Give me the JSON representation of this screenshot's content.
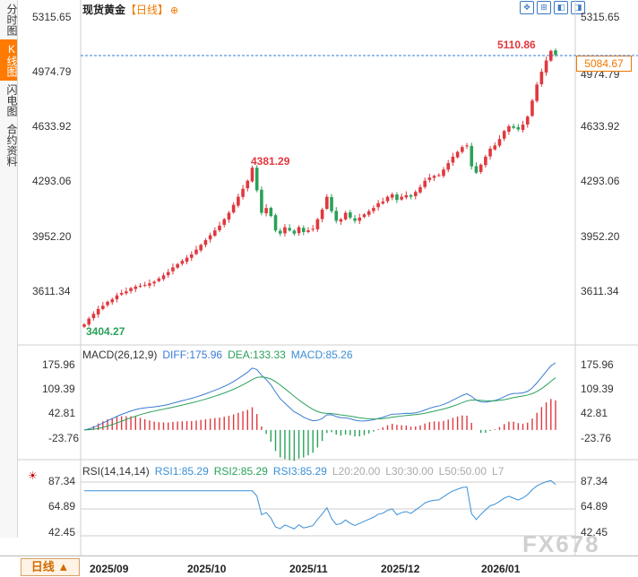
{
  "sidebar": {
    "tabs": [
      {
        "label": "分时图",
        "active": false
      },
      {
        "label": "K线图",
        "active": true
      },
      {
        "label": "闪电图",
        "active": false
      },
      {
        "label": "合约资料",
        "active": false
      }
    ]
  },
  "header": {
    "title": "现货黄金",
    "subtitle": "【日线】",
    "add_icon": "⊕"
  },
  "toolbar": {
    "icons": [
      "crosshair-icon",
      "zoom-in-icon",
      "move-left-icon",
      "move-right-icon"
    ]
  },
  "price_panel": {
    "y_ticks": [
      "5315.65",
      "4974.79",
      "4633.92",
      "4293.06",
      "3952.20",
      "3611.34"
    ],
    "high_label": "5110.86",
    "mid_high_label": "4381.29",
    "low_label": "3404.27",
    "current_price": "5084.67"
  },
  "macd_panel": {
    "title": "MACD(26,12,9)",
    "diff": "DIFF:175.96",
    "dea": "DEA:133.33",
    "macd": "MACD:85.26",
    "y_ticks": [
      "175.96",
      "109.39",
      "42.81",
      "-23.76"
    ]
  },
  "rsi_panel": {
    "title": "RSI(14,14,14)",
    "rsi1": "RSI1:85.29",
    "rsi2": "RSI2:85.29",
    "rsi3": "RSI3:85.29",
    "l20": "L20:20.00",
    "l30": "L30:30.00",
    "l50": "L50:50.00",
    "l7": "L7",
    "y_ticks": [
      "87.34",
      "64.89",
      "42.45"
    ]
  },
  "x_axis": {
    "labels": [
      "2025/09",
      "2025/10",
      "2025/11",
      "2025/12",
      "2026/01"
    ]
  },
  "bottom": {
    "range_label": "日线 ▲"
  },
  "watermark": "FX678",
  "chart_data": {
    "type": "candlestick",
    "colors": {
      "up": "#e0383e",
      "down": "#2aa15a",
      "diff": "#3a7bd5",
      "dea": "#2aa15a",
      "rsi": "#3a8fd5"
    },
    "y_range": [
      3404.27,
      5315.65
    ],
    "closes": [
      3404,
      3440,
      3470,
      3500,
      3520,
      3545,
      3560,
      3585,
      3600,
      3610,
      3630,
      3640,
      3645,
      3650,
      3660,
      3670,
      3690,
      3710,
      3730,
      3760,
      3780,
      3800,
      3820,
      3840,
      3870,
      3900,
      3930,
      3960,
      3990,
      4020,
      4060,
      4100,
      4150,
      4200,
      4250,
      4300,
      4381,
      4240,
      4100,
      4130,
      4080,
      3990,
      3970,
      4010,
      3990,
      3970,
      4010,
      3980,
      3990,
      4000,
      4060,
      4120,
      4200,
      4110,
      4050,
      4060,
      4100,
      4070,
      4050,
      4070,
      4090,
      4110,
      4130,
      4160,
      4170,
      4200,
      4215,
      4180,
      4200,
      4210,
      4200,
      4230,
      4260,
      4300,
      4320,
      4330,
      4335,
      4370,
      4410,
      4450,
      4480,
      4510,
      4520,
      4390,
      4350,
      4400,
      4450,
      4500,
      4520,
      4560,
      4610,
      4640,
      4630,
      4620,
      4650,
      4700,
      4800,
      4900,
      4980,
      5050,
      5110,
      5085
    ],
    "macd": {
      "diff_last": 175.96,
      "dea_last": 133.33,
      "macd_last": 85.26,
      "y_range": [
        -23.76,
        175.96
      ]
    },
    "rsi": {
      "last": 85.29,
      "y_range": [
        42.45,
        87.34
      ]
    }
  }
}
